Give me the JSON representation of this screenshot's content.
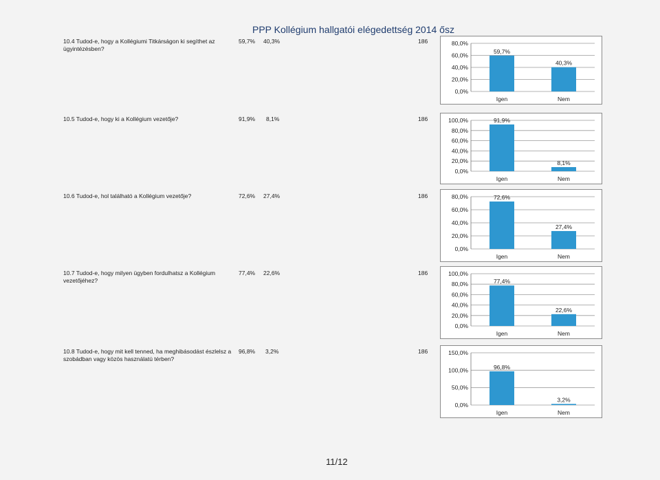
{
  "page_title": "PPP Kollégium hallgatói elégedettség 2014 ősz",
  "page_number": "11/12",
  "bar_color": "#2e97d0",
  "questions": [
    {
      "text": "10.4 Tudod-e, hogy a Kollégiumi Titkárságon ki segíthet az ügyintézésben?",
      "yes": "59,7%",
      "no": "40,3%",
      "n": "186"
    },
    {
      "text": "10.5 Tudod-e, hogy ki a Kollégium vezetője?",
      "yes": "91,9%",
      "no": "8,1%",
      "n": "186"
    },
    {
      "text": "10.6 Tudod-e, hol található a Kollégium vezetője?",
      "yes": "72,6%",
      "no": "27,4%",
      "n": "186"
    },
    {
      "text": "10.7 Tudod-e, hogy milyen ügyben fordulhatsz a Kollégium vezetőjéhez?",
      "yes": "77,4%",
      "no": "22,6%",
      "n": "186"
    },
    {
      "text": "10.8 Tudod-e, hogy mit kell tenned, ha meghibásodást észlelsz a szobádban vagy közös használatú térben?",
      "yes": "96,8%",
      "no": "3,2%",
      "n": "186"
    }
  ],
  "chart_data": [
    {
      "type": "bar",
      "categories": [
        "Igen",
        "Nem"
      ],
      "values": [
        59.7,
        40.3
      ],
      "data_labels": [
        "59,7%",
        "40,3%"
      ],
      "ylim": [
        0,
        80
      ],
      "ticks": [
        0,
        20,
        40,
        60,
        80
      ],
      "tick_labels": [
        "0,0%",
        "20,0%",
        "40,0%",
        "60,0%",
        "80,0%"
      ]
    },
    {
      "type": "bar",
      "categories": [
        "Igen",
        "Nem"
      ],
      "values": [
        91.9,
        8.1
      ],
      "data_labels": [
        "91,9%",
        "8,1%"
      ],
      "ylim": [
        0,
        100
      ],
      "ticks": [
        0,
        20,
        40,
        60,
        80,
        100
      ],
      "tick_labels": [
        "0,0%",
        "20,0%",
        "40,0%",
        "60,0%",
        "80,0%",
        "100,0%"
      ]
    },
    {
      "type": "bar",
      "categories": [
        "Igen",
        "Nem"
      ],
      "values": [
        72.6,
        27.4
      ],
      "data_labels": [
        "72,6%",
        "27,4%"
      ],
      "ylim": [
        0,
        80
      ],
      "ticks": [
        0,
        20,
        40,
        60,
        80
      ],
      "tick_labels": [
        "0,0%",
        "20,0%",
        "40,0%",
        "60,0%",
        "80,0%"
      ]
    },
    {
      "type": "bar",
      "categories": [
        "Igen",
        "Nem"
      ],
      "values": [
        77.4,
        22.6
      ],
      "data_labels": [
        "77,4%",
        "22,6%"
      ],
      "ylim": [
        0,
        100
      ],
      "ticks": [
        0,
        20,
        40,
        60,
        80,
        100
      ],
      "tick_labels": [
        "0,0%",
        "20,0%",
        "40,0%",
        "60,0%",
        "80,0%",
        "100,0%"
      ]
    },
    {
      "type": "bar",
      "categories": [
        "Igen",
        "Nem"
      ],
      "values": [
        96.8,
        3.2
      ],
      "data_labels": [
        "96,8%",
        "3,2%"
      ],
      "ylim": [
        0,
        150
      ],
      "ticks": [
        0,
        50,
        100,
        150
      ],
      "tick_labels": [
        "0,0%",
        "50,0%",
        "100,0%",
        "150,0%"
      ]
    }
  ]
}
